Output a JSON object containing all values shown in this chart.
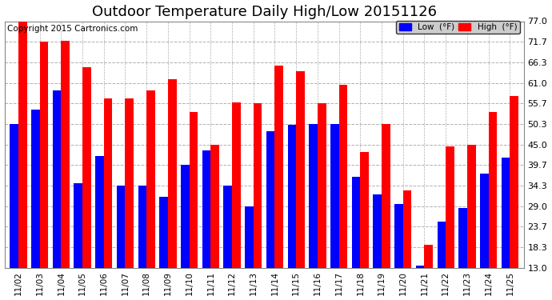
{
  "title": "Outdoor Temperature Daily High/Low 20151126",
  "copyright": "Copyright 2015 Cartronics.com",
  "categories": [
    "11/02",
    "11/03",
    "11/04",
    "11/05",
    "11/06",
    "11/07",
    "11/08",
    "11/09",
    "11/10",
    "11/11",
    "11/12",
    "11/13",
    "11/14",
    "11/15",
    "11/16",
    "11/17",
    "11/18",
    "11/19",
    "11/20",
    "11/21",
    "11/22",
    "11/23",
    "11/24",
    "11/25"
  ],
  "low_values": [
    50.3,
    54.0,
    59.0,
    35.0,
    42.0,
    34.3,
    34.3,
    31.5,
    39.7,
    43.5,
    34.3,
    29.0,
    48.5,
    50.0,
    50.3,
    50.3,
    36.5,
    32.0,
    29.5,
    13.5,
    25.0,
    28.5,
    37.5,
    41.5
  ],
  "high_values": [
    77.0,
    71.7,
    72.0,
    65.0,
    57.0,
    57.0,
    59.0,
    62.0,
    53.5,
    45.0,
    56.0,
    55.7,
    65.5,
    64.0,
    55.7,
    60.5,
    43.0,
    50.3,
    33.0,
    19.0,
    44.5,
    45.0,
    53.5,
    57.5
  ],
  "low_color": "#0000ff",
  "high_color": "#ff0000",
  "bg_color": "#ffffff",
  "plot_bg_color": "#ffffff",
  "grid_color": "#b0b0b0",
  "ylim_min": 13.0,
  "ylim_max": 77.0,
  "yticks": [
    13.0,
    18.3,
    23.7,
    29.0,
    34.3,
    39.7,
    45.0,
    50.3,
    55.7,
    61.0,
    66.3,
    71.7,
    77.0
  ],
  "title_fontsize": 13,
  "copyright_fontsize": 7.5,
  "legend_low_label": "Low  (°F)",
  "legend_high_label": "High  (°F)"
}
